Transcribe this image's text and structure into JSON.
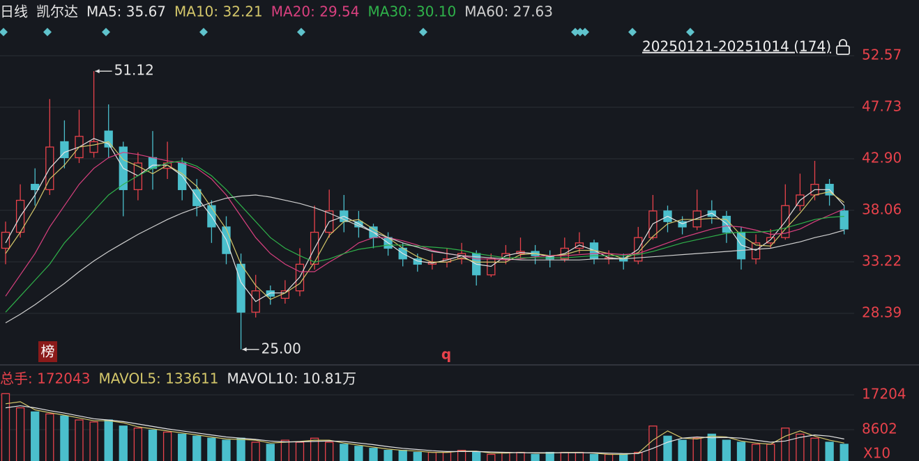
{
  "chart_data": {
    "type": "candlestick",
    "title": "日线",
    "stock": "凯尔达",
    "range_label": "20250121-20251014 (174)",
    "badge": "榜",
    "marker_text": "q",
    "up_color": "#e8424b",
    "down_color": "#4bbfcc",
    "ylim": [
      23.68,
      57.8
    ],
    "yticks": [
      52.57,
      47.73,
      {
        "value": 42.9,
        "label": "42.90"
      },
      38.06,
      33.22,
      28.39
    ],
    "grid": true,
    "annotations": [
      {
        "value": 51.12,
        "label": "51.12"
      },
      {
        "value": 25,
        "label": "25.00"
      }
    ],
    "open": [
      34.5,
      36,
      40.5,
      40,
      44.5,
      43,
      43.5,
      45.5,
      44,
      40,
      43,
      42,
      42.5,
      40,
      38.5,
      36.5,
      33,
      28.5,
      30.5,
      29.8,
      30.5,
      33,
      36,
      38,
      37,
      36.5,
      35.5,
      34.5,
      33.5,
      33,
      33.2,
      33.5,
      34,
      32,
      33.5,
      34,
      34.2,
      33.8,
      33.5,
      34.5,
      35,
      33.5,
      33.6,
      33.3,
      35.5,
      38,
      37,
      36.5,
      38,
      37.5,
      36,
      33.5,
      35,
      35.5,
      38.5,
      39.5,
      40.5,
      38
    ],
    "high": [
      37,
      40.5,
      42,
      48.5,
      46.5,
      47.5,
      51.12,
      48,
      44.5,
      43.5,
      45.5,
      44.5,
      43,
      41,
      39,
      37.5,
      34,
      32,
      31,
      31.5,
      34.5,
      38.5,
      40,
      39.5,
      38,
      36.8,
      36,
      35,
      34,
      34,
      34.5,
      35,
      34.3,
      34,
      34.8,
      35.5,
      34.8,
      34.3,
      35.5,
      36,
      35.3,
      34.3,
      34,
      36.5,
      39.5,
      38.5,
      37.5,
      40,
      39,
      38,
      36.5,
      35.8,
      36.3,
      40.5,
      41.5,
      42.7,
      41,
      38.5
    ],
    "low": [
      33,
      35.5,
      38.5,
      39.5,
      42,
      42.5,
      43,
      43,
      37.5,
      39,
      40,
      41,
      39,
      37.5,
      35,
      33,
      25,
      28,
      29.2,
      29.3,
      30,
      32.5,
      35.5,
      36,
      35.5,
      34.5,
      33.8,
      32.8,
      32.3,
      32.5,
      32.7,
      33,
      31,
      31.8,
      33,
      33.5,
      33,
      32.7,
      33.2,
      34,
      33,
      33,
      32.5,
      33,
      35.3,
      36,
      35.8,
      36.2,
      36.8,
      35,
      32.5,
      33,
      34.5,
      35.3,
      38,
      39,
      38.5,
      35.8
    ],
    "close": [
      36,
      39,
      40,
      44,
      43,
      45,
      44.5,
      44,
      40,
      42.5,
      42,
      42.5,
      40,
      38.5,
      36.5,
      34,
      28.5,
      30.5,
      30,
      30.5,
      33,
      36,
      38,
      37,
      36.5,
      35.5,
      34.5,
      33.5,
      33,
      33.2,
      33.5,
      34,
      32,
      33.5,
      34,
      34.2,
      33.8,
      33.5,
      34.5,
      35,
      33.5,
      33.6,
      33.3,
      35.5,
      38,
      37,
      36.5,
      38,
      37.5,
      36,
      33.5,
      35,
      35.5,
      38.5,
      39.5,
      40.5,
      39.5,
      36.3
    ],
    "ma": [
      {
        "label": "MA5: 35.67",
        "color": "#e6e6e6",
        "values": [
          35,
          37.5,
          39.5,
          42,
          43.5,
          44,
          44.8,
          44.3,
          42,
          41.3,
          42.3,
          42.3,
          41.3,
          39.3,
          37.5,
          35.3,
          31.3,
          29.5,
          30.3,
          30.3,
          31.8,
          34.5,
          37,
          37.5,
          36.8,
          36,
          35,
          34,
          33.3,
          33.1,
          33.4,
          33.8,
          33,
          32.8,
          33.8,
          34.1,
          34,
          33.7,
          34,
          34.8,
          34.3,
          33.6,
          33.5,
          34.4,
          36.8,
          37.5,
          36.8,
          37.3,
          37.8,
          36.8,
          34.8,
          34.3,
          35.3,
          37,
          39,
          40,
          40,
          38.5
        ]
      },
      {
        "label": "MA10: 32.21",
        "color": "#d4c76a",
        "values": [
          34,
          36,
          38.3,
          41,
          42.3,
          44,
          44.2,
          44.5,
          42.8,
          42.2,
          41.5,
          42.3,
          41.5,
          40.3,
          38.3,
          36.3,
          33,
          31,
          29.7,
          30.3,
          31.2,
          33.2,
          35.7,
          37,
          37.2,
          36.3,
          35.5,
          34.5,
          33.7,
          33.2,
          33.2,
          33.6,
          33.2,
          33.2,
          33.2,
          33.9,
          34,
          33.8,
          33.9,
          34.3,
          34.3,
          34,
          33.5,
          34.1,
          35.6,
          36.8,
          37.2,
          37.2,
          37.3,
          37.2,
          35.7,
          34.8,
          34.7,
          36.3,
          37.8,
          39.5,
          39.8,
          38.8
        ]
      },
      {
        "label": "MA20: 29.54",
        "color": "#d9407f",
        "values": [
          30,
          32,
          34,
          36.5,
          38.5,
          40.5,
          42,
          43,
          43.5,
          43.3,
          43,
          42.7,
          42.5,
          42,
          41,
          39.5,
          37.5,
          35.5,
          34,
          33,
          32.3,
          32.3,
          33.2,
          34,
          35,
          35.5,
          35.5,
          35.2,
          34.8,
          34.3,
          34,
          33.8,
          33.5,
          33.5,
          33.4,
          33.5,
          33.7,
          33.8,
          33.8,
          33.9,
          34,
          34,
          33.9,
          34,
          34.5,
          35,
          35.5,
          35.9,
          36.3,
          36.6,
          36.5,
          36.2,
          35.8,
          35.9,
          36.3,
          37,
          37.6,
          38.2
        ]
      },
      {
        "label": "MA30: 30.10",
        "color": "#2fb24a",
        "values": [
          28.5,
          30,
          31.5,
          33,
          35,
          36.5,
          38,
          39.5,
          40.5,
          41.3,
          42,
          42.5,
          42.7,
          42.2,
          41.3,
          40,
          38.5,
          37,
          35.5,
          34.5,
          33.8,
          33.2,
          33.5,
          34,
          34.4,
          34.6,
          34.8,
          34.8,
          34.7,
          34.6,
          34.5,
          34.3,
          34,
          33.8,
          33.6,
          33.6,
          33.6,
          33.6,
          33.6,
          33.7,
          33.8,
          33.8,
          33.8,
          33.9,
          34.2,
          34.6,
          35,
          35.3,
          35.6,
          35.9,
          36,
          36,
          36.1,
          36.4,
          36.8,
          37.2,
          37.4,
          37.5
        ]
      },
      {
        "label": "MA60: 27.63",
        "color": "#d0d0d0",
        "values": [
          27.5,
          28.3,
          29.2,
          30.2,
          31.2,
          32.3,
          33.3,
          34.2,
          35,
          35.8,
          36.5,
          37.2,
          37.8,
          38.3,
          38.8,
          39.2,
          39.4,
          39.5,
          39.3,
          39,
          38.7,
          38.3,
          37.8,
          37.2,
          36.6,
          36,
          35.5,
          35,
          34.6,
          34.2,
          34,
          33.8,
          33.7,
          33.6,
          33.5,
          33.4,
          33.4,
          33.4,
          33.4,
          33.4,
          33.5,
          33.5,
          33.5,
          33.6,
          33.7,
          33.8,
          33.9,
          34,
          34.1,
          34.2,
          34.3,
          34.4,
          34.5,
          34.8,
          35.1,
          35.5,
          35.8,
          36.2
        ]
      }
    ],
    "volume": {
      "type": "bar",
      "header": [
        {
          "label": "总手: 172043",
          "color": "#e8424b"
        },
        {
          "label": "MAVOL5: 133611",
          "color": "#d4c76a"
        },
        {
          "label": "MAVOL10: 10.81万",
          "color": "#e6e6e6"
        }
      ],
      "unit": "X10",
      "ylim": [
        0,
        23914
      ],
      "yticks": [
        17204,
        8602
      ],
      "values": [
        17500,
        14000,
        13000,
        12500,
        12000,
        11000,
        10500,
        11000,
        9500,
        9000,
        8500,
        8000,
        7500,
        7000,
        6500,
        6000,
        6500,
        5500,
        5000,
        6000,
        5500,
        6500,
        5500,
        5000,
        4500,
        4000,
        3500,
        3500,
        3000,
        3000,
        3000,
        3500,
        3000,
        2500,
        3000,
        3000,
        2500,
        3000,
        3000,
        3000,
        2500,
        2500,
        2500,
        3000,
        9500,
        7000,
        6000,
        6500,
        7500,
        6000,
        5500,
        5000,
        5000,
        9000,
        7500,
        6500,
        5500,
        5000
      ],
      "mavol5": {
        "color": "#d4c76a",
        "values": [
          15000,
          15500,
          13500,
          12800,
          12200,
          11500,
          10800,
          10800,
          10300,
          9300,
          8800,
          8300,
          7800,
          7300,
          6800,
          6300,
          6200,
          6000,
          5300,
          5500,
          5700,
          6000,
          6000,
          5300,
          4800,
          4300,
          3800,
          3500,
          3300,
          3000,
          3000,
          3300,
          3300,
          2800,
          2800,
          3000,
          2800,
          2800,
          3000,
          3000,
          2800,
          2500,
          2500,
          2800,
          6000,
          8300,
          6500,
          6300,
          7000,
          6800,
          5800,
          5300,
          5000,
          7000,
          8300,
          7000,
          6000,
          5300
        ]
      },
      "mavol10": {
        "color": "#e6e6e6",
        "values": [
          14000,
          14500,
          14000,
          13300,
          12700,
          12000,
          11300,
          11000,
          10600,
          10000,
          9400,
          8800,
          8300,
          7800,
          7300,
          6800,
          6500,
          6200,
          5800,
          5600,
          5600,
          5700,
          5800,
          5700,
          5300,
          4900,
          4400,
          4000,
          3700,
          3400,
          3200,
          3200,
          3200,
          3100,
          3000,
          2900,
          2900,
          2900,
          2900,
          2900,
          2900,
          2800,
          2700,
          2700,
          4000,
          5500,
          6500,
          6800,
          6600,
          6700,
          6500,
          6000,
          5500,
          5800,
          6700,
          7300,
          7000,
          6300
        ]
      }
    }
  }
}
